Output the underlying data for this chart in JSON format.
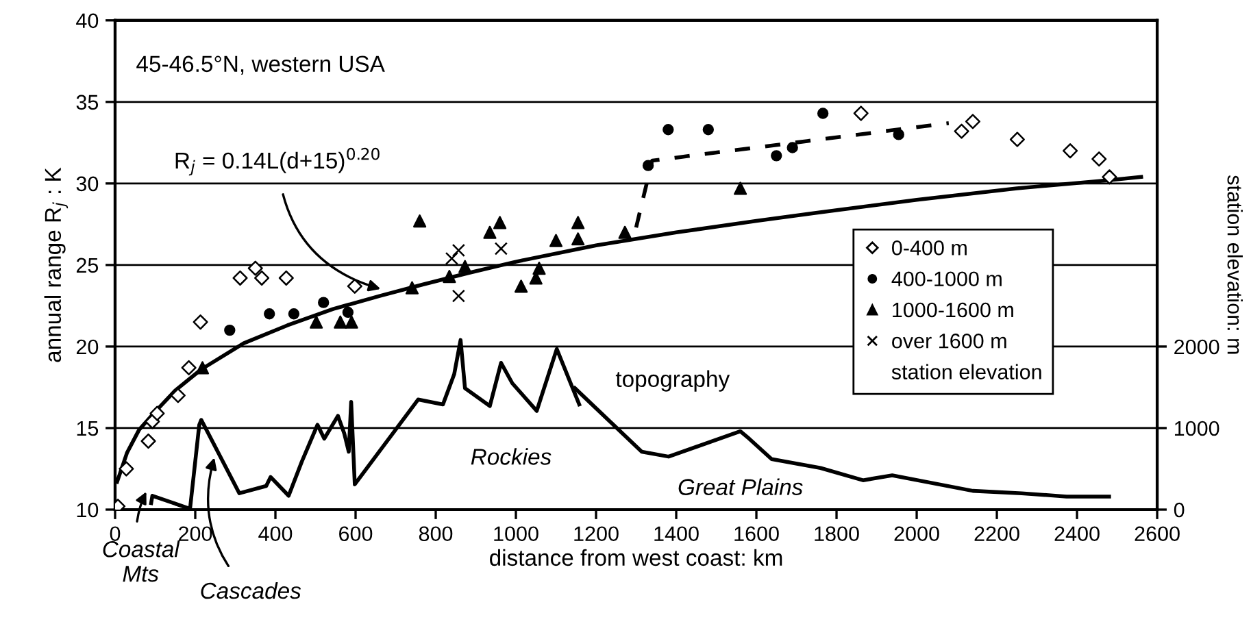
{
  "chart_data": {
    "type": "scatter",
    "xlabel": "distance from west coast: km",
    "ylabel": "annual range R$_{j}$ : K",
    "y2label": "station elevation: m",
    "xlim": [
      0,
      2600
    ],
    "xticks": [
      0,
      200,
      400,
      600,
      800,
      1000,
      1200,
      1400,
      1600,
      1800,
      2000,
      2200,
      2400,
      2600
    ],
    "ylim": [
      10,
      40
    ],
    "yticks": [
      10,
      15,
      20,
      25,
      30,
      35,
      40
    ],
    "y2lim": [
      0,
      6000
    ],
    "y2ticks": [
      0,
      1000,
      2000
    ],
    "grid": "y",
    "legend": "right",
    "legend_title": "station elevation",
    "series": [
      {
        "name": "0-400 m",
        "marker": "diamond",
        "color": "#000000",
        "x": [
          7,
          28,
          83,
          93,
          105,
          157,
          184,
          213,
          312,
          350,
          366,
          427,
          598,
          1861,
          2112,
          2140,
          2251,
          2383,
          2455,
          2481
        ],
        "values": [
          10.2,
          12.5,
          14.2,
          15.4,
          15.9,
          17.0,
          18.7,
          21.5,
          24.2,
          24.8,
          24.2,
          24.2,
          23.7,
          34.3,
          33.2,
          33.8,
          32.7,
          32.0,
          31.5,
          30.4
        ]
      },
      {
        "name": "400-1000 m",
        "marker": "circle",
        "color": "#000000",
        "x": [
          286,
          385,
          446,
          520,
          581,
          1330,
          1380,
          1480,
          1650,
          1690,
          1766,
          1955
        ],
        "values": [
          21.0,
          22.0,
          22.0,
          22.7,
          22.1,
          31.1,
          33.3,
          33.3,
          31.7,
          32.2,
          34.3,
          33.0
        ]
      },
      {
        "name": "1000-1600 m",
        "marker": "triangle",
        "color": "#000000",
        "x": [
          218,
          502,
          562,
          590,
          741,
          760,
          834,
          873,
          935,
          960,
          1013,
          1050,
          1058,
          1100,
          1155,
          1155,
          1272,
          1560
        ],
        "values": [
          18.7,
          21.5,
          21.5,
          21.5,
          23.6,
          27.7,
          24.3,
          24.9,
          27.0,
          27.6,
          23.7,
          24.2,
          24.8,
          26.5,
          27.6,
          26.6,
          27.0,
          29.7
        ]
      },
      {
        "name": "over 1600 m",
        "marker": "cross",
        "color": "#000000",
        "x": [
          840,
          857,
          857,
          963
        ],
        "values": [
          25.4,
          25.9,
          23.1,
          26.0
        ]
      },
      {
        "type": "line",
        "line_style": "solid",
        "color": "#000000",
        "x": [
          5,
          30,
          60,
          100,
          150,
          215,
          321,
          430,
          544,
          660,
          767,
          880,
          1000,
          1200,
          1400,
          1600,
          1749,
          2000,
          2250,
          2481,
          2560
        ],
        "values": [
          11.7,
          13.5,
          14.9,
          16.0,
          17.3,
          18.6,
          20.2,
          21.3,
          22.3,
          23.1,
          23.8,
          24.5,
          25.2,
          26.2,
          27.0,
          27.7,
          28.2,
          29.0,
          29.7,
          30.2,
          30.4
        ]
      },
      {
        "type": "line",
        "line_style": "dashed",
        "color": "#000000",
        "x": [
          1300,
          1340,
          1727,
          2080
        ],
        "values": [
          27.3,
          31.4,
          32.6,
          33.7
        ]
      },
      {
        "type": "line",
        "line_style": "solid",
        "axis": "y2",
        "color": "#000000",
        "x": [
          90,
          93,
          187,
          210,
          215,
          310,
          377,
          388,
          433,
          466,
          505,
          522,
          556,
          572,
          583,
          589,
          598,
          756,
          818,
          846,
          862,
          873,
          935,
          963,
          991,
          1052,
          1102,
          1158
        ],
        "values": [
          80,
          170,
          10,
          1040,
          1100,
          200,
          290,
          400,
          170,
          590,
          1040,
          870,
          1150,
          930,
          710,
          1320,
          310,
          1350,
          1290,
          1660,
          2080,
          1490,
          1270,
          1800,
          1550,
          1210,
          1970,
          1290
        ]
      },
      {
        "type": "line",
        "line_style": "solid",
        "axis": "y2",
        "color": "#000000",
        "x": [
          1147,
          1314,
          1381,
          1560,
          1582,
          1638,
          1760,
          1866,
          1939,
          2140,
          2262,
          2374,
          2480
        ],
        "values": [
          1490,
          710,
          650,
          960,
          870,
          620,
          510,
          360,
          420,
          230,
          200,
          160,
          160
        ]
      }
    ],
    "annotations": [
      "45-46.5°N, western USA",
      {
        "text": "R$_{j}$ = 0.14L(d+15)$^{0.20}$",
        "x": 667,
        "y": 23.5
      },
      "topography",
      "Rockies",
      "Great Plains",
      {
        "text": "Coastal\nMts",
        "x": 80,
        "y": 11.2
      },
      {
        "text": "Cascades",
        "x": 249,
        "y": 13.3
      }
    ]
  }
}
